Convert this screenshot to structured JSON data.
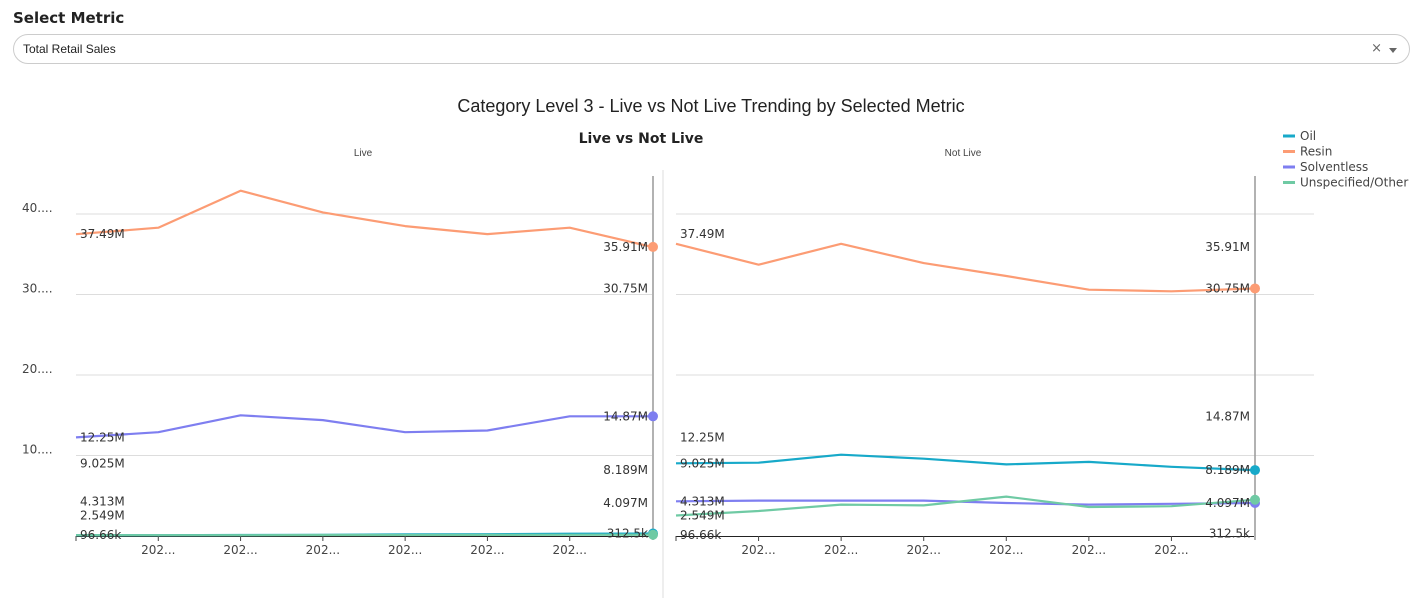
{
  "filter": {
    "label": "Select Metric",
    "selected": "Total Retail Sales",
    "clear_icon": "×"
  },
  "chart_data": {
    "type": "line",
    "title": "Category Level 3 - Live vs Not Live Trending by Selected Metric",
    "subtitle": "Live vs Not Live",
    "panels": [
      "Live",
      "Not Live"
    ],
    "y_ticks": [
      "10....",
      "20....",
      "30....",
      "40...."
    ],
    "y_tick_values": [
      10,
      20,
      30,
      40
    ],
    "ylim": [
      0,
      45
    ],
    "y_units": "millions",
    "x_tick_labels": [
      "202...",
      "202...",
      "202...",
      "202...",
      "202...",
      "202..."
    ],
    "grid": true,
    "legend_position": "top-right",
    "legend": [
      {
        "name": "Oil",
        "color": "#17a9c9"
      },
      {
        "name": "Resin",
        "color": "#fc9c74"
      },
      {
        "name": "Solventless",
        "color": "#7e7ef0"
      },
      {
        "name": "Unspecified/Other",
        "color": "#6fcaa4"
      }
    ],
    "series": {
      "Live": [
        {
          "name": "Oil",
          "values": [
            0.097,
            0.1,
            0.12,
            0.15,
            0.2,
            0.22,
            0.28,
            0.3125
          ]
        },
        {
          "name": "Resin",
          "values": [
            37.49,
            38.3,
            42.9,
            40.2,
            38.5,
            37.5,
            38.3,
            35.91
          ]
        },
        {
          "name": "Solventless",
          "values": [
            12.25,
            12.9,
            15.0,
            14.4,
            12.9,
            13.1,
            14.87,
            14.87
          ]
        },
        {
          "name": "Unspecified/Other",
          "values": [
            0.097,
            0.1,
            0.1,
            0.12,
            0.13,
            0.14,
            0.15,
            0.16
          ]
        }
      ],
      "Not Live": [
        {
          "name": "Oil",
          "values": [
            9.025,
            9.1,
            10.1,
            9.6,
            8.9,
            9.2,
            8.6,
            8.189
          ]
        },
        {
          "name": "Resin",
          "values": [
            36.3,
            33.7,
            36.3,
            33.9,
            32.3,
            30.6,
            30.4,
            30.75
          ]
        },
        {
          "name": "Solventless",
          "values": [
            4.313,
            4.4,
            4.4,
            4.4,
            4.1,
            3.9,
            4.0,
            4.097
          ]
        },
        {
          "name": "Unspecified/Other",
          "values": [
            2.549,
            3.1,
            3.9,
            3.8,
            4.9,
            3.6,
            3.7,
            4.5
          ]
        }
      ]
    },
    "start_labels": [
      "37.49M",
      "12.25M",
      "9.025M",
      "4.313M",
      "2.549M",
      "96.66k"
    ],
    "end_labels": [
      "35.91M",
      "30.75M",
      "14.87M",
      "8.189M",
      "4.097M",
      "312.5k"
    ],
    "start_label_values": [
      37.49,
      12.25,
      9.025,
      4.313,
      2.549,
      0.09666
    ],
    "end_label_values": [
      35.91,
      30.75,
      14.87,
      8.189,
      4.097,
      0.3125
    ]
  }
}
